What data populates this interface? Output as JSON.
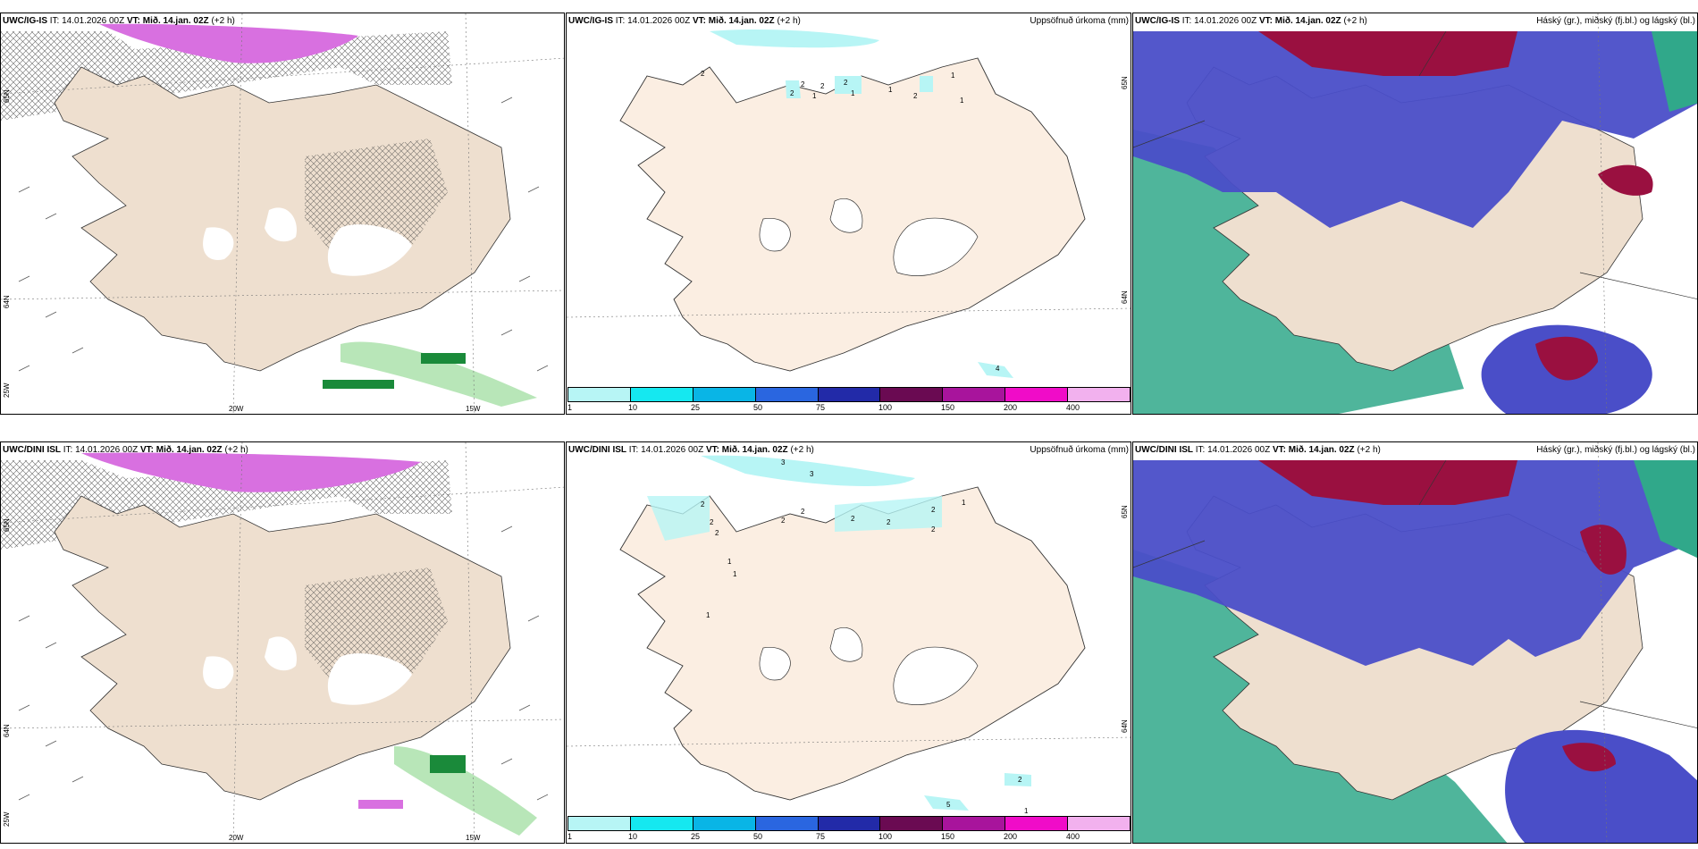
{
  "rows": [
    {
      "model": "UWC/IG-IS",
      "it_label": "IT:",
      "it_value": "14.01.2026 00Z",
      "vt_label": "VT:",
      "vt_value": "Mið. 14.jan. 02Z",
      "lead": "(+2 h)",
      "axis": {
        "lon1": "20W",
        "lon2": "15W",
        "lon_left": "25W",
        "lat_top": "65N",
        "lat_mid": "64N",
        "lat_right_top": "65N",
        "lat_right_mid": "64N"
      },
      "precip_labels": [
        "2",
        "2",
        "2",
        "1",
        "2",
        "2",
        "1",
        "1",
        "2",
        "1",
        "1",
        "4"
      ]
    },
    {
      "model": "UWC/DINI ISL",
      "it_label": "IT:",
      "it_value": "14.01.2026 00Z",
      "vt_label": "VT:",
      "vt_value": "Mið. 14.jan. 02Z",
      "lead": "(+2 h)",
      "axis": {
        "lon1": "20W",
        "lon2": "15W",
        "lon_left": "25W",
        "lat_top": "65N",
        "lat_mid": "64N",
        "lat_right_top": "65N",
        "lat_right_mid": "64N"
      },
      "precip_labels": [
        "3",
        "3",
        "2",
        "2",
        "2",
        "1",
        "1",
        "1",
        "2",
        "2",
        "2",
        "2",
        "2",
        "1",
        "2",
        "5",
        "2",
        "1"
      ]
    }
  ],
  "middle_title": "Uppsöfnuð úrkoma (mm)",
  "right_title": "Háský (gr.), miðský (fj.bl.) og lágský (bl.)",
  "colorbar": {
    "ticks": [
      "1",
      "10",
      "25",
      "50",
      "75",
      "100",
      "150",
      "200",
      "400"
    ],
    "colors": [
      "#b7f5f5",
      "#15e8f0",
      "#09b5e6",
      "#2a66e0",
      "#222aa8",
      "#6a0a52",
      "#a8149c",
      "#f00cc8",
      "#f2b1ee"
    ]
  },
  "colors": {
    "land": "#eedfcf",
    "land_precip": "#fbeee2",
    "snow_magenta": "#d870e0",
    "rain_green": "#1a8a3a",
    "high_cloud": "#9a1040",
    "mid_cloud": "#4a4ec8",
    "low_cloud": "#30a88a"
  }
}
